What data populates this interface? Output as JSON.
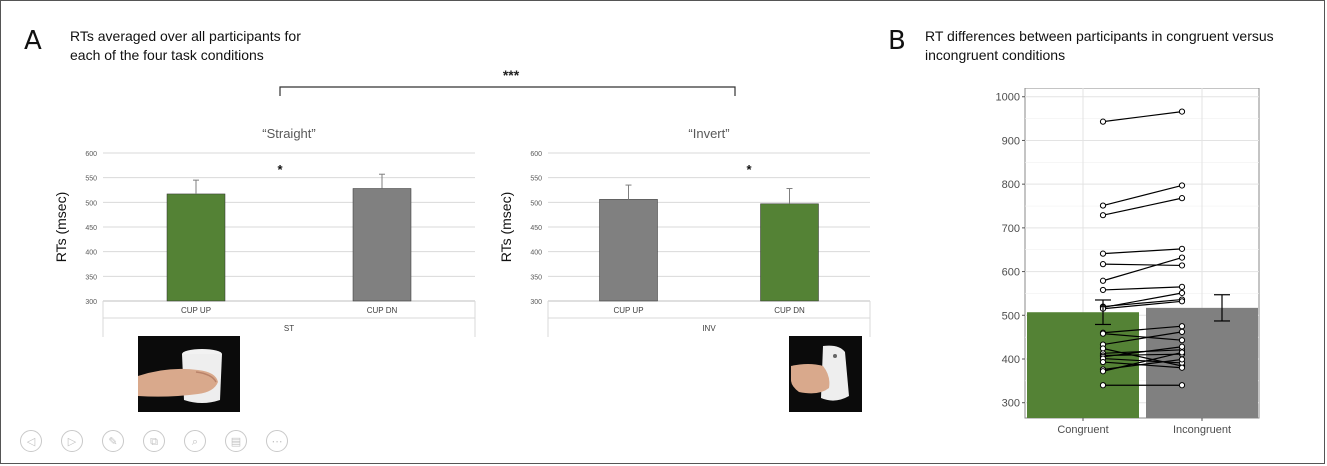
{
  "figure": {
    "panel_a_letter": "A",
    "panel_a_title_line1": "RTs averaged over all participants for",
    "panel_a_title_line2": "each of the four task conditions",
    "panel_b_letter": "B",
    "panel_b_title_line1": "RT differences between participants in congruent versus",
    "panel_b_title_line2": "incongruent conditions",
    "between_sig": "***"
  },
  "colors": {
    "green": "#548235",
    "gray": "#808080",
    "frame": "#555555"
  },
  "icons": [
    "hand-grasp-cup-up-photo",
    "hand-grasp-cup-down-photo"
  ],
  "toolbar": {
    "icons": [
      "prev-icon",
      "next-icon",
      "edit-icon",
      "copy-icon",
      "zoom-icon",
      "print-icon",
      "more-icon"
    ]
  },
  "chart_data": [
    {
      "type": "bar",
      "title": "“Straight”",
      "ylabel": "RTs (msec)",
      "xlabel": "",
      "group_label": "ST",
      "categories": [
        "CUP UP",
        "CUP DN"
      ],
      "values": [
        517,
        528
      ],
      "errors": [
        28,
        29
      ],
      "colors": [
        "#548235",
        "#808080"
      ],
      "ylim": [
        300,
        600
      ],
      "yticks": [
        300,
        350,
        400,
        450,
        500,
        550,
        600
      ],
      "sig": "*",
      "grid": true
    },
    {
      "type": "bar",
      "title": "“Invert”",
      "ylabel": "RTs (msec)",
      "xlabel": "",
      "group_label": "INV",
      "categories": [
        "CUP UP",
        "CUP DN"
      ],
      "values": [
        506,
        497
      ],
      "errors": [
        29,
        31
      ],
      "colors": [
        "#808080",
        "#548235"
      ],
      "ylim": [
        300,
        600
      ],
      "yticks": [
        300,
        350,
        400,
        450,
        500,
        550,
        600
      ],
      "sig": "*",
      "grid": true
    },
    {
      "type": "bar",
      "ylabel": "RTs (msec)",
      "xlabel": "",
      "categories": [
        "Congruent",
        "Incongruent"
      ],
      "values": [
        507,
        517
      ],
      "errors": [
        28,
        30
      ],
      "colors": [
        "#548235",
        "#808080"
      ],
      "ylim": [
        265,
        1020
      ],
      "yticks": [
        300,
        400,
        500,
        600,
        700,
        800,
        900,
        1000
      ],
      "grid": true,
      "participants": [
        [
          943,
          966
        ],
        [
          751,
          797
        ],
        [
          729,
          768
        ],
        [
          641,
          652
        ],
        [
          617,
          614
        ],
        [
          579,
          632
        ],
        [
          558,
          565
        ],
        [
          520,
          536
        ],
        [
          518,
          551
        ],
        [
          515,
          532
        ],
        [
          460,
          475
        ],
        [
          458,
          443
        ],
        [
          433,
          462
        ],
        [
          424,
          384
        ],
        [
          413,
          421
        ],
        [
          408,
          411
        ],
        [
          405,
          428
        ],
        [
          401,
          391
        ],
        [
          393,
          380
        ],
        [
          376,
          399
        ],
        [
          372,
          415
        ],
        [
          340,
          340
        ]
      ]
    }
  ]
}
